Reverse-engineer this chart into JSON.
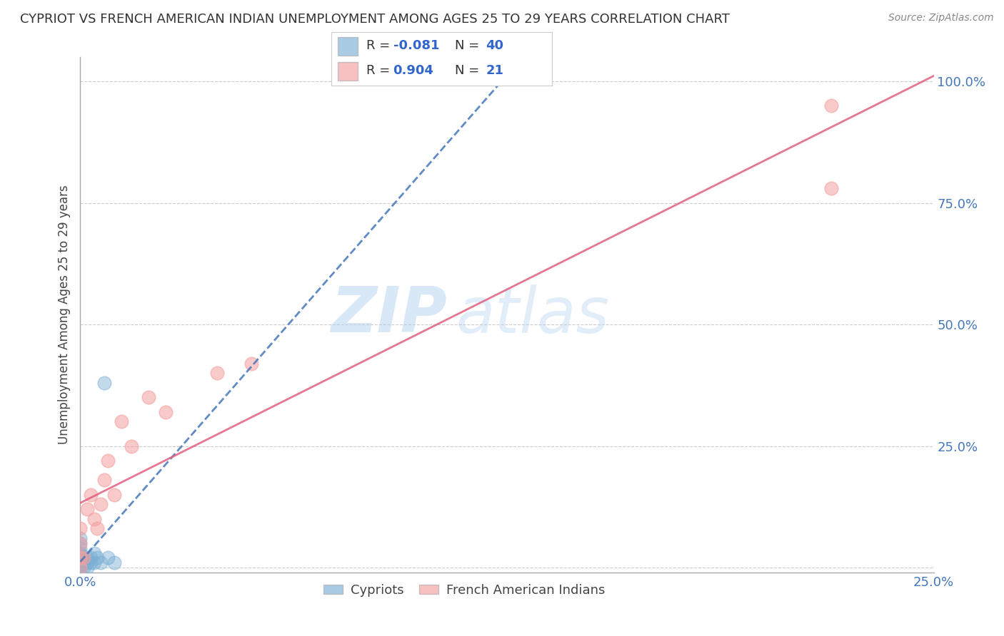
{
  "title": "CYPRIOT VS FRENCH AMERICAN INDIAN UNEMPLOYMENT AMONG AGES 25 TO 29 YEARS CORRELATION CHART",
  "source": "Source: ZipAtlas.com",
  "ylabel": "Unemployment Among Ages 25 to 29 years",
  "xlim": [
    0.0,
    0.25
  ],
  "ylim": [
    -0.01,
    1.05
  ],
  "xticks": [
    0.0,
    0.25
  ],
  "xticklabels": [
    "0.0%",
    "25.0%"
  ],
  "ytick_positions": [
    0.0,
    0.25,
    0.5,
    0.75,
    1.0
  ],
  "ytick_labels": [
    "",
    "25.0%",
    "50.0%",
    "75.0%",
    "100.0%"
  ],
  "grid_color": "#cccccc",
  "background_color": "#ffffff",
  "watermark_zip": "ZIP",
  "watermark_atlas": "atlas",
  "legend_r1": "-0.081",
  "legend_n1": "40",
  "legend_r2": "0.904",
  "legend_n2": "21",
  "cypriot_color": "#7bafd4",
  "cypriot_line_color": "#4477bb",
  "fai_color": "#f4a0a0",
  "fai_line_color": "#e06080",
  "cypriot_x": [
    0.0,
    0.0,
    0.0,
    0.0,
    0.0,
    0.0,
    0.0,
    0.0,
    0.0,
    0.0,
    0.0,
    0.0,
    0.0,
    0.0,
    0.0,
    0.0,
    0.0,
    0.0,
    0.0,
    0.0,
    0.0,
    0.0,
    0.0,
    0.0,
    0.0,
    0.001,
    0.001,
    0.001,
    0.002,
    0.002,
    0.002,
    0.003,
    0.003,
    0.004,
    0.004,
    0.005,
    0.006,
    0.007,
    0.008,
    0.01
  ],
  "cypriot_y": [
    0.0,
    0.0,
    0.0,
    0.0,
    0.0,
    0.0,
    0.0,
    0.0,
    0.0,
    0.0,
    0.01,
    0.01,
    0.01,
    0.015,
    0.015,
    0.02,
    0.02,
    0.02,
    0.025,
    0.025,
    0.03,
    0.03,
    0.04,
    0.05,
    0.06,
    0.0,
    0.01,
    0.02,
    0.0,
    0.01,
    0.02,
    0.01,
    0.02,
    0.01,
    0.03,
    0.02,
    0.01,
    0.38,
    0.02,
    0.01
  ],
  "fai_x": [
    0.0,
    0.0,
    0.0,
    0.0,
    0.001,
    0.002,
    0.003,
    0.004,
    0.005,
    0.006,
    0.007,
    0.008,
    0.01,
    0.012,
    0.015,
    0.02,
    0.025,
    0.04,
    0.05,
    0.22,
    0.22
  ],
  "fai_y": [
    0.0,
    0.02,
    0.05,
    0.08,
    0.02,
    0.12,
    0.15,
    0.1,
    0.08,
    0.13,
    0.18,
    0.22,
    0.15,
    0.3,
    0.25,
    0.35,
    0.32,
    0.4,
    0.42,
    0.95,
    0.78
  ]
}
